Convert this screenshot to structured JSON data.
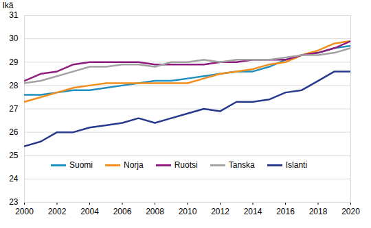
{
  "chart_data": {
    "type": "line",
    "y_label": "Ikä",
    "x": [
      2000,
      2001,
      2002,
      2003,
      2004,
      2005,
      2006,
      2007,
      2008,
      2009,
      2010,
      2011,
      2012,
      2013,
      2014,
      2015,
      2016,
      2017,
      2018,
      2019,
      2020
    ],
    "series": [
      {
        "name": "Suomi",
        "color": "#1f8fc0",
        "values": [
          27.6,
          27.6,
          27.7,
          27.8,
          27.8,
          27.9,
          28.0,
          28.1,
          28.2,
          28.2,
          28.3,
          28.4,
          28.5,
          28.6,
          28.6,
          28.8,
          29.1,
          29.3,
          29.4,
          29.6,
          29.7
        ]
      },
      {
        "name": "Norja",
        "color": "#f28e1c",
        "values": [
          27.3,
          27.5,
          27.7,
          27.9,
          28.0,
          28.1,
          28.1,
          28.1,
          28.1,
          28.1,
          28.1,
          28.3,
          28.5,
          28.6,
          28.7,
          28.9,
          29.0,
          29.3,
          29.5,
          29.8,
          29.9
        ]
      },
      {
        "name": "Ruotsi",
        "color": "#8e1b7d",
        "values": [
          28.2,
          28.5,
          28.6,
          28.9,
          29.0,
          29.0,
          29.0,
          29.0,
          28.9,
          28.9,
          28.9,
          28.9,
          29.0,
          29.0,
          29.1,
          29.1,
          29.1,
          29.3,
          29.4,
          29.6,
          29.9
        ]
      },
      {
        "name": "Tanska",
        "color": "#a3a3a3",
        "values": [
          28.1,
          28.2,
          28.4,
          28.6,
          28.8,
          28.8,
          28.9,
          28.9,
          28.8,
          29.0,
          29.0,
          29.1,
          29.0,
          29.1,
          29.1,
          29.1,
          29.2,
          29.3,
          29.3,
          29.4,
          29.6
        ]
      },
      {
        "name": "Islanti",
        "color": "#26398c",
        "values": [
          25.4,
          25.6,
          26.0,
          26.0,
          26.2,
          26.3,
          26.4,
          26.6,
          26.4,
          26.6,
          26.8,
          27.0,
          26.9,
          27.3,
          27.3,
          27.4,
          27.7,
          27.8,
          28.2,
          28.6,
          28.6
        ]
      }
    ],
    "xlim": [
      2000,
      2020
    ],
    "xticks": [
      2000,
      2002,
      2004,
      2006,
      2008,
      2010,
      2012,
      2014,
      2016,
      2018,
      2020
    ],
    "ylim": [
      23,
      31
    ],
    "yticks": [
      23,
      24,
      25,
      26,
      27,
      28,
      29,
      30,
      31
    ],
    "grid": true,
    "legend": "bottom"
  }
}
